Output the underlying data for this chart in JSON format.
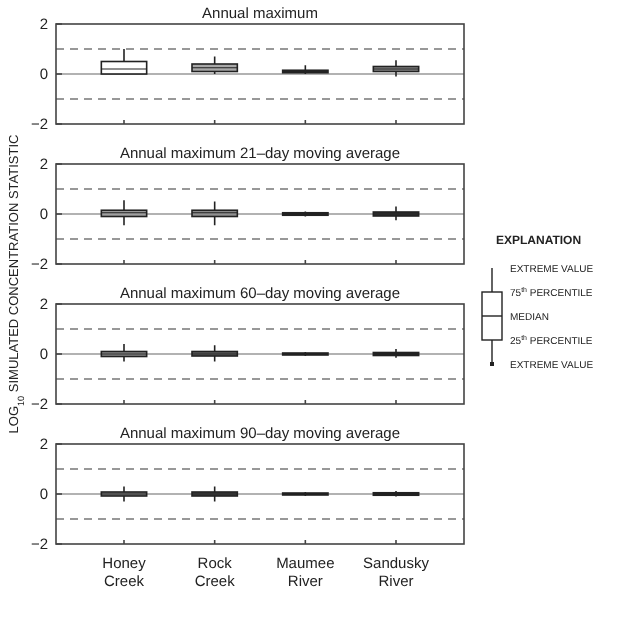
{
  "chart_data": [
    {
      "type": "box",
      "title": "Annual maximum",
      "ylabel": "LOG$_{10}$ SIMULATED CONCENTRATION STATISTIC",
      "categories": [
        null,
        null,
        null,
        null
      ],
      "ylim": [
        -2,
        2
      ],
      "yticks": [
        -2,
        0,
        2
      ],
      "colors": [
        "#ffffff",
        "#a8a8a8",
        "#202020",
        "#888888"
      ],
      "boxes": [
        {
          "low": 0,
          "q1": 0,
          "median": 0.2,
          "q3": 0.5,
          "high": 1.0
        },
        {
          "low": 0,
          "q1": 0.1,
          "median": 0.25,
          "q3": 0.4,
          "high": 0.7
        },
        {
          "low": 0,
          "q1": 0.05,
          "median": 0.1,
          "q3": 0.15,
          "high": 0.35
        },
        {
          "low": -0.1,
          "q1": 0.1,
          "median": 0.2,
          "q3": 0.3,
          "high": 0.55
        }
      ],
      "ref_lines": [
        {
          "axis": "y",
          "value": 1,
          "color": "#777777",
          "line_style": "dashed"
        },
        {
          "axis": "y",
          "value": -1,
          "color": "#777777",
          "line_style": "dashed"
        },
        {
          "axis": "y",
          "value": 0,
          "color": "#999999",
          "line_style": "solid"
        }
      ]
    },
    {
      "type": "box",
      "title": "Annual maximum 21–day moving average",
      "categories": [
        null,
        null,
        null,
        null
      ],
      "ylim": [
        -2,
        2
      ],
      "yticks": [
        -2,
        0,
        2
      ],
      "colors": [
        "#a0a0a0",
        "#909090",
        "#202020",
        "#303030"
      ],
      "boxes": [
        {
          "low": -0.45,
          "q1": -0.1,
          "median": 0.05,
          "q3": 0.15,
          "high": 0.55
        },
        {
          "low": -0.45,
          "q1": -0.1,
          "median": 0.05,
          "q3": 0.15,
          "high": 0.5
        },
        {
          "low": -0.1,
          "q1": -0.05,
          "median": 0,
          "q3": 0.05,
          "high": 0.1
        },
        {
          "low": -0.25,
          "q1": -0.08,
          "median": 0,
          "q3": 0.08,
          "high": 0.3
        }
      ],
      "ref_lines": [
        {
          "axis": "y",
          "value": 1,
          "color": "#777777",
          "line_style": "dashed"
        },
        {
          "axis": "y",
          "value": -1,
          "color": "#777777",
          "line_style": "dashed"
        },
        {
          "axis": "y",
          "value": 0,
          "color": "#999999",
          "line_style": "solid"
        }
      ]
    },
    {
      "type": "box",
      "title": "Annual maximum 60–day moving average",
      "categories": [
        null,
        null,
        null,
        null
      ],
      "ylim": [
        -2,
        2
      ],
      "yticks": [
        -2,
        0,
        2
      ],
      "colors": [
        "#909090",
        "#606060",
        "#202020",
        "#202020"
      ],
      "boxes": [
        {
          "low": -0.3,
          "q1": -0.1,
          "median": 0,
          "q3": 0.1,
          "high": 0.4
        },
        {
          "low": -0.3,
          "q1": -0.08,
          "median": 0,
          "q3": 0.1,
          "high": 0.35
        },
        {
          "low": -0.08,
          "q1": -0.04,
          "median": 0,
          "q3": 0.04,
          "high": 0.08
        },
        {
          "low": -0.15,
          "q1": -0.06,
          "median": 0,
          "q3": 0.06,
          "high": 0.2
        }
      ],
      "ref_lines": [
        {
          "axis": "y",
          "value": 1,
          "color": "#777777",
          "line_style": "dashed"
        },
        {
          "axis": "y",
          "value": -1,
          "color": "#777777",
          "line_style": "dashed"
        },
        {
          "axis": "y",
          "value": 0,
          "color": "#999999",
          "line_style": "solid"
        }
      ]
    },
    {
      "type": "box",
      "title": "Annual maximum 90–day moving average",
      "categories": [
        "Honey Creek",
        "Rock Creek",
        "Maumee River",
        "Sandusky River"
      ],
      "ylim": [
        -2,
        2
      ],
      "yticks": [
        -2,
        0,
        2
      ],
      "colors": [
        "#808080",
        "#404040",
        "#101010",
        "#202020"
      ],
      "boxes": [
        {
          "low": -0.3,
          "q1": -0.08,
          "median": 0,
          "q3": 0.08,
          "high": 0.3
        },
        {
          "low": -0.3,
          "q1": -0.08,
          "median": 0,
          "q3": 0.08,
          "high": 0.3
        },
        {
          "low": -0.08,
          "q1": -0.04,
          "median": 0,
          "q3": 0.04,
          "high": 0.08
        },
        {
          "low": -0.1,
          "q1": -0.05,
          "median": 0,
          "q3": 0.05,
          "high": 0.12
        }
      ],
      "ref_lines": [
        {
          "axis": "y",
          "value": 1,
          "color": "#777777",
          "line_style": "dashed"
        },
        {
          "axis": "y",
          "value": -1,
          "color": "#777777",
          "line_style": "dashed"
        },
        {
          "axis": "y",
          "value": 0,
          "color": "#999999",
          "line_style": "solid"
        }
      ]
    },
    {
      "type": "other",
      "title": "EXPLANATION",
      "annotations": [
        "EXTREME VALUE",
        "75$^{th}$ PERCENTILE",
        "MEDIAN",
        "25$^{th}$ PERCENTILE",
        "EXTREME VALUE"
      ]
    }
  ]
}
